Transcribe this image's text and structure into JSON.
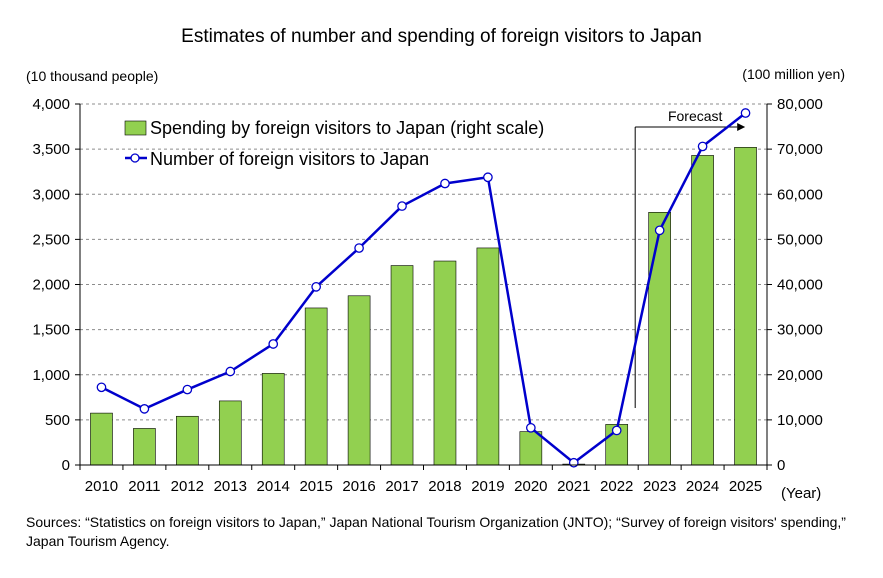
{
  "page": {
    "title": "Estimates of number and spending of foreign visitors to Japan",
    "left_unit": "(10 thousand people)",
    "right_unit": "(100 million yen)",
    "x_unit": "(Year)",
    "forecast_label": "Forecast",
    "sources": "Sources: “Statistics on foreign visitors to Japan,” Japan National Tourism Organization (JNTO); “Survey of foreign visitors' spending,” Japan Tourism Agency."
  },
  "chart_data": {
    "type": "bar",
    "categories": [
      "2010",
      "2011",
      "2012",
      "2013",
      "2014",
      "2015",
      "2016",
      "2017",
      "2018",
      "2019",
      "2020",
      "2021",
      "2022",
      "2023",
      "2024",
      "2025"
    ],
    "series": [
      {
        "name": "Spending by foreign visitors to Japan (right scale)",
        "type": "bar",
        "axis": "right",
        "color": "#92d050",
        "values": [
          11500,
          8100,
          10800,
          14200,
          20300,
          34800,
          37500,
          44200,
          45200,
          48100,
          7400,
          200,
          9000,
          56000,
          68600,
          70400
        ]
      },
      {
        "name": "Number of foreign visitors to Japan",
        "type": "line",
        "axis": "left",
        "color": "#0000cc",
        "values": [
          861,
          622,
          836,
          1036,
          1341,
          1974,
          2404,
          2869,
          3119,
          3188,
          412,
          25,
          383,
          2600,
          3530,
          3900
        ]
      }
    ],
    "y_left": {
      "min": 0,
      "max": 4000,
      "ticks": [
        "0",
        "500",
        "1,000",
        "1,500",
        "2,000",
        "2,500",
        "3,000",
        "3,500",
        "4,000"
      ]
    },
    "y_right": {
      "min": 0,
      "max": 80000,
      "ticks": [
        "0",
        "10,000",
        "20,000",
        "30,000",
        "40,000",
        "50,000",
        "60,000",
        "70,000",
        "80,000"
      ]
    },
    "grid": "horizontal dashed",
    "legend": "top-left inside plot",
    "forecast_from": "2023"
  }
}
